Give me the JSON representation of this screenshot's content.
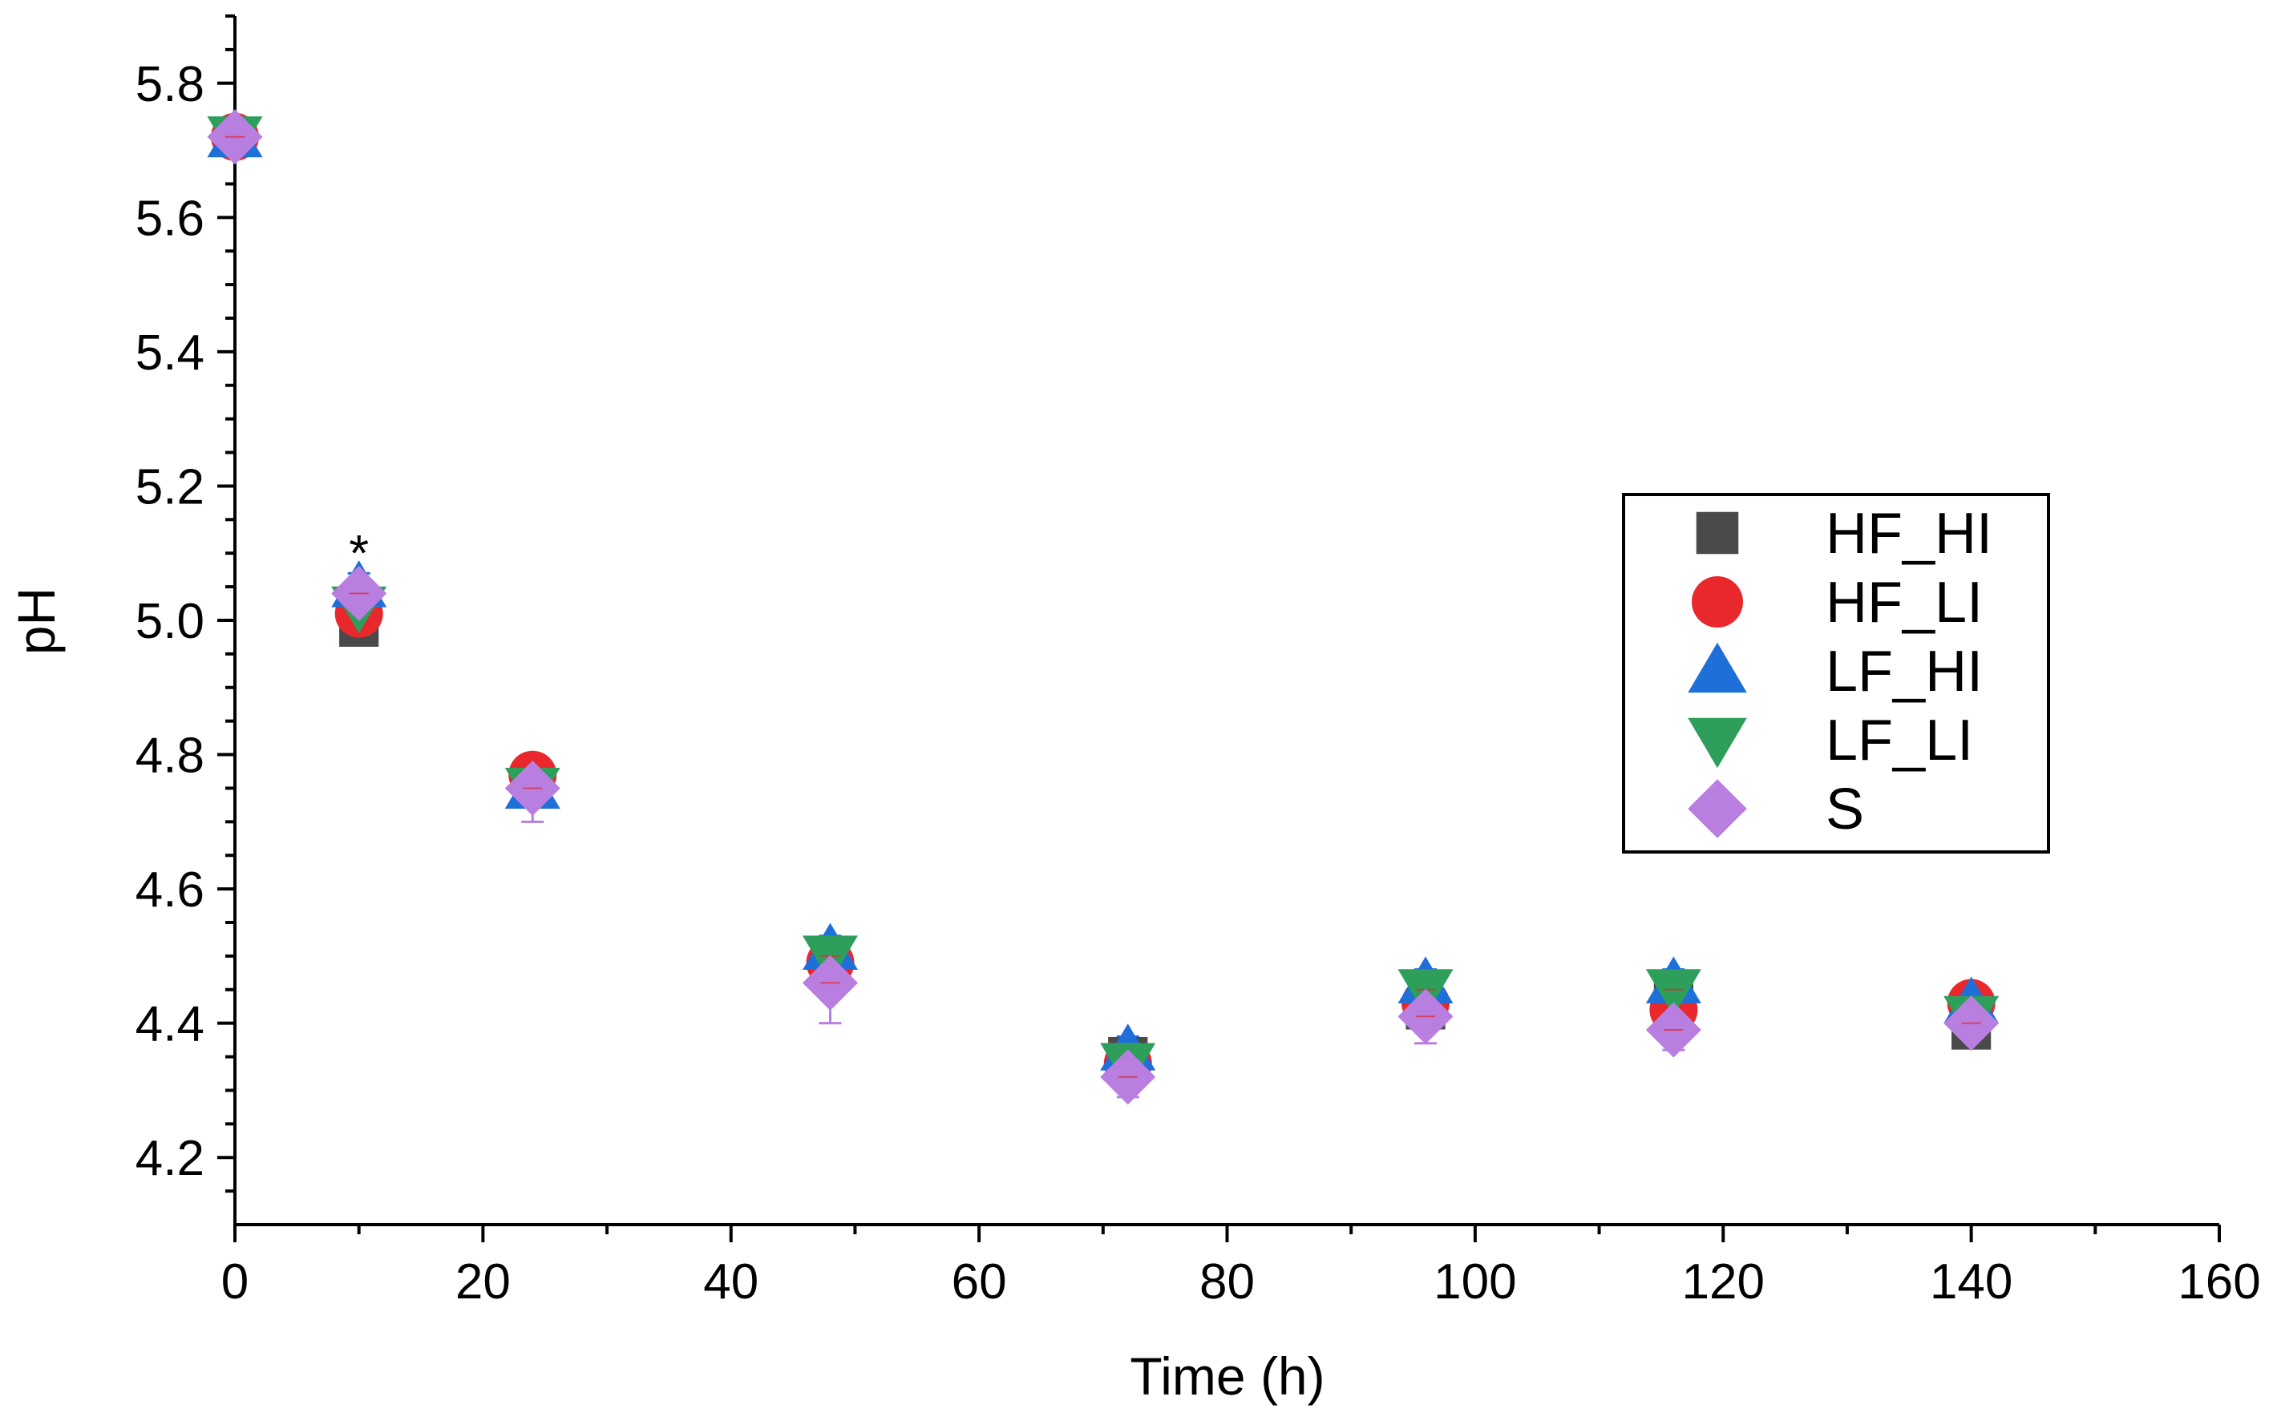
{
  "chart_data": {
    "type": "scatter",
    "title": "",
    "xlabel": "Time (h)",
    "ylabel": "pH",
    "xlim": [
      0,
      160
    ],
    "ylim": [
      4.1,
      5.9
    ],
    "xticks": [
      0,
      20,
      40,
      60,
      80,
      100,
      120,
      140,
      160
    ],
    "yticks": [
      4.2,
      4.4,
      4.6,
      4.8,
      5.0,
      5.2,
      5.4,
      5.6,
      5.8
    ],
    "grid": false,
    "legend_position": "center-right",
    "annotations": [
      {
        "text": "*",
        "x": 10,
        "y": 5.1
      }
    ],
    "series": [
      {
        "name": "HF_HI",
        "marker": "square",
        "color": "#4a4a4a",
        "x": [
          0,
          10,
          24,
          48,
          72,
          96,
          116,
          140
        ],
        "y": [
          5.72,
          4.99,
          4.76,
          4.48,
          4.35,
          4.42,
          4.43,
          4.39
        ],
        "err": [
          0.01,
          0.02,
          0.02,
          0.03,
          0.02,
          0.02,
          0.02,
          0.02
        ]
      },
      {
        "name": "HF_LI",
        "marker": "circle",
        "color": "#e8282c",
        "x": [
          0,
          10,
          24,
          48,
          72,
          96,
          116,
          140
        ],
        "y": [
          5.72,
          5.01,
          4.77,
          4.49,
          4.34,
          4.43,
          4.42,
          4.43
        ],
        "err": [
          0.01,
          0.02,
          0.02,
          0.02,
          0.02,
          0.02,
          0.02,
          0.02
        ]
      },
      {
        "name": "LF_HI",
        "marker": "triangle-up",
        "color": "#1f6fd9",
        "x": [
          0,
          10,
          24,
          48,
          72,
          96,
          116,
          140
        ],
        "y": [
          5.72,
          5.05,
          4.75,
          4.51,
          4.36,
          4.46,
          4.46,
          4.43
        ],
        "err": [
          0.01,
          0.02,
          0.02,
          0.02,
          0.02,
          0.02,
          0.02,
          0.02
        ]
      },
      {
        "name": "LF_LI",
        "marker": "triangle-down",
        "color": "#2e9e5b",
        "x": [
          0,
          10,
          24,
          48,
          72,
          96,
          116,
          140
        ],
        "y": [
          5.72,
          5.02,
          4.75,
          4.5,
          4.34,
          4.45,
          4.45,
          4.41
        ],
        "err": [
          0.01,
          0.02,
          0.02,
          0.02,
          0.02,
          0.02,
          0.02,
          0.02
        ]
      },
      {
        "name": "S",
        "marker": "diamond",
        "color": "#b87ee0",
        "x": [
          0,
          10,
          24,
          48,
          72,
          96,
          116,
          140
        ],
        "y": [
          5.72,
          5.04,
          4.75,
          4.46,
          4.32,
          4.41,
          4.39,
          4.4
        ],
        "err": [
          0.01,
          0.02,
          0.05,
          0.06,
          0.03,
          0.04,
          0.03,
          0.02
        ]
      }
    ]
  }
}
